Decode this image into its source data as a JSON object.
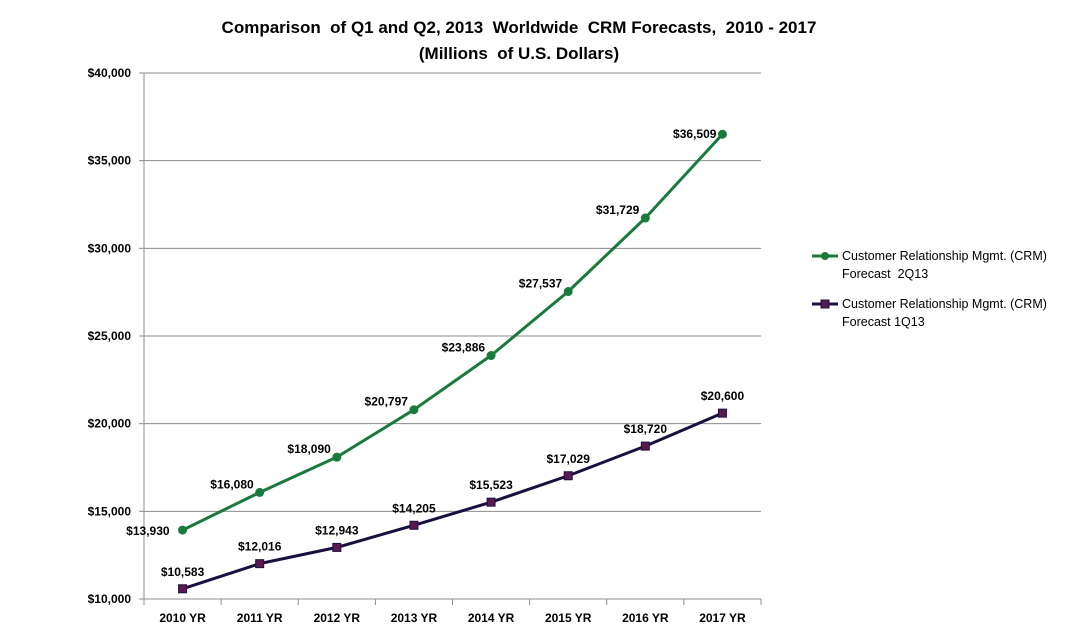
{
  "chart_data": {
    "type": "line",
    "title_line1": "Comparison  of Q1 and Q2, 2013  Worldwide  CRM Forecasts,  2010 - 2017",
    "title_line2": "(Millions  of U.S. Dollars)",
    "xlabel": "",
    "ylabel": "",
    "categories": [
      "2010 YR",
      "2011 YR",
      "2012 YR",
      "2013 YR",
      "2014 YR",
      "2015 YR",
      "2016 YR",
      "2017 YR"
    ],
    "ylim": [
      10000,
      40000
    ],
    "yticks": [
      10000,
      15000,
      20000,
      25000,
      30000,
      35000,
      40000
    ],
    "ytick_labels": [
      "$10,000",
      "$15,000",
      "$20,000",
      "$25,000",
      "$30,000",
      "$35,000",
      "$40,000"
    ],
    "grid": true,
    "legend_position": "right",
    "series": [
      {
        "name_line1": "Customer Relationship Mgmt. (CRM)",
        "name_line2": "Forecast  2Q13",
        "color": "#1a7a3c",
        "marker": "circle",
        "values": [
          13930,
          16080,
          18090,
          20797,
          23886,
          27537,
          31729,
          36509
        ],
        "labels": [
          "$13,930",
          "$16,080",
          "$18,090",
          "$20,797",
          "$23,886",
          "$27,537",
          "$31,729",
          "$36,509"
        ]
      },
      {
        "name_line1": "Customer Relationship Mgmt. (CRM)",
        "name_line2": "Forecast 1Q13",
        "color": "#1a1040",
        "marker_fill": "#5a1a50",
        "marker": "square",
        "values": [
          10583,
          12016,
          12943,
          14205,
          15523,
          17029,
          18720,
          20600
        ],
        "labels": [
          "$10,583",
          "$12,016",
          "$12,943",
          "$14,205",
          "$15,523",
          "$17,029",
          "$18,720",
          "$20,600"
        ]
      }
    ]
  }
}
